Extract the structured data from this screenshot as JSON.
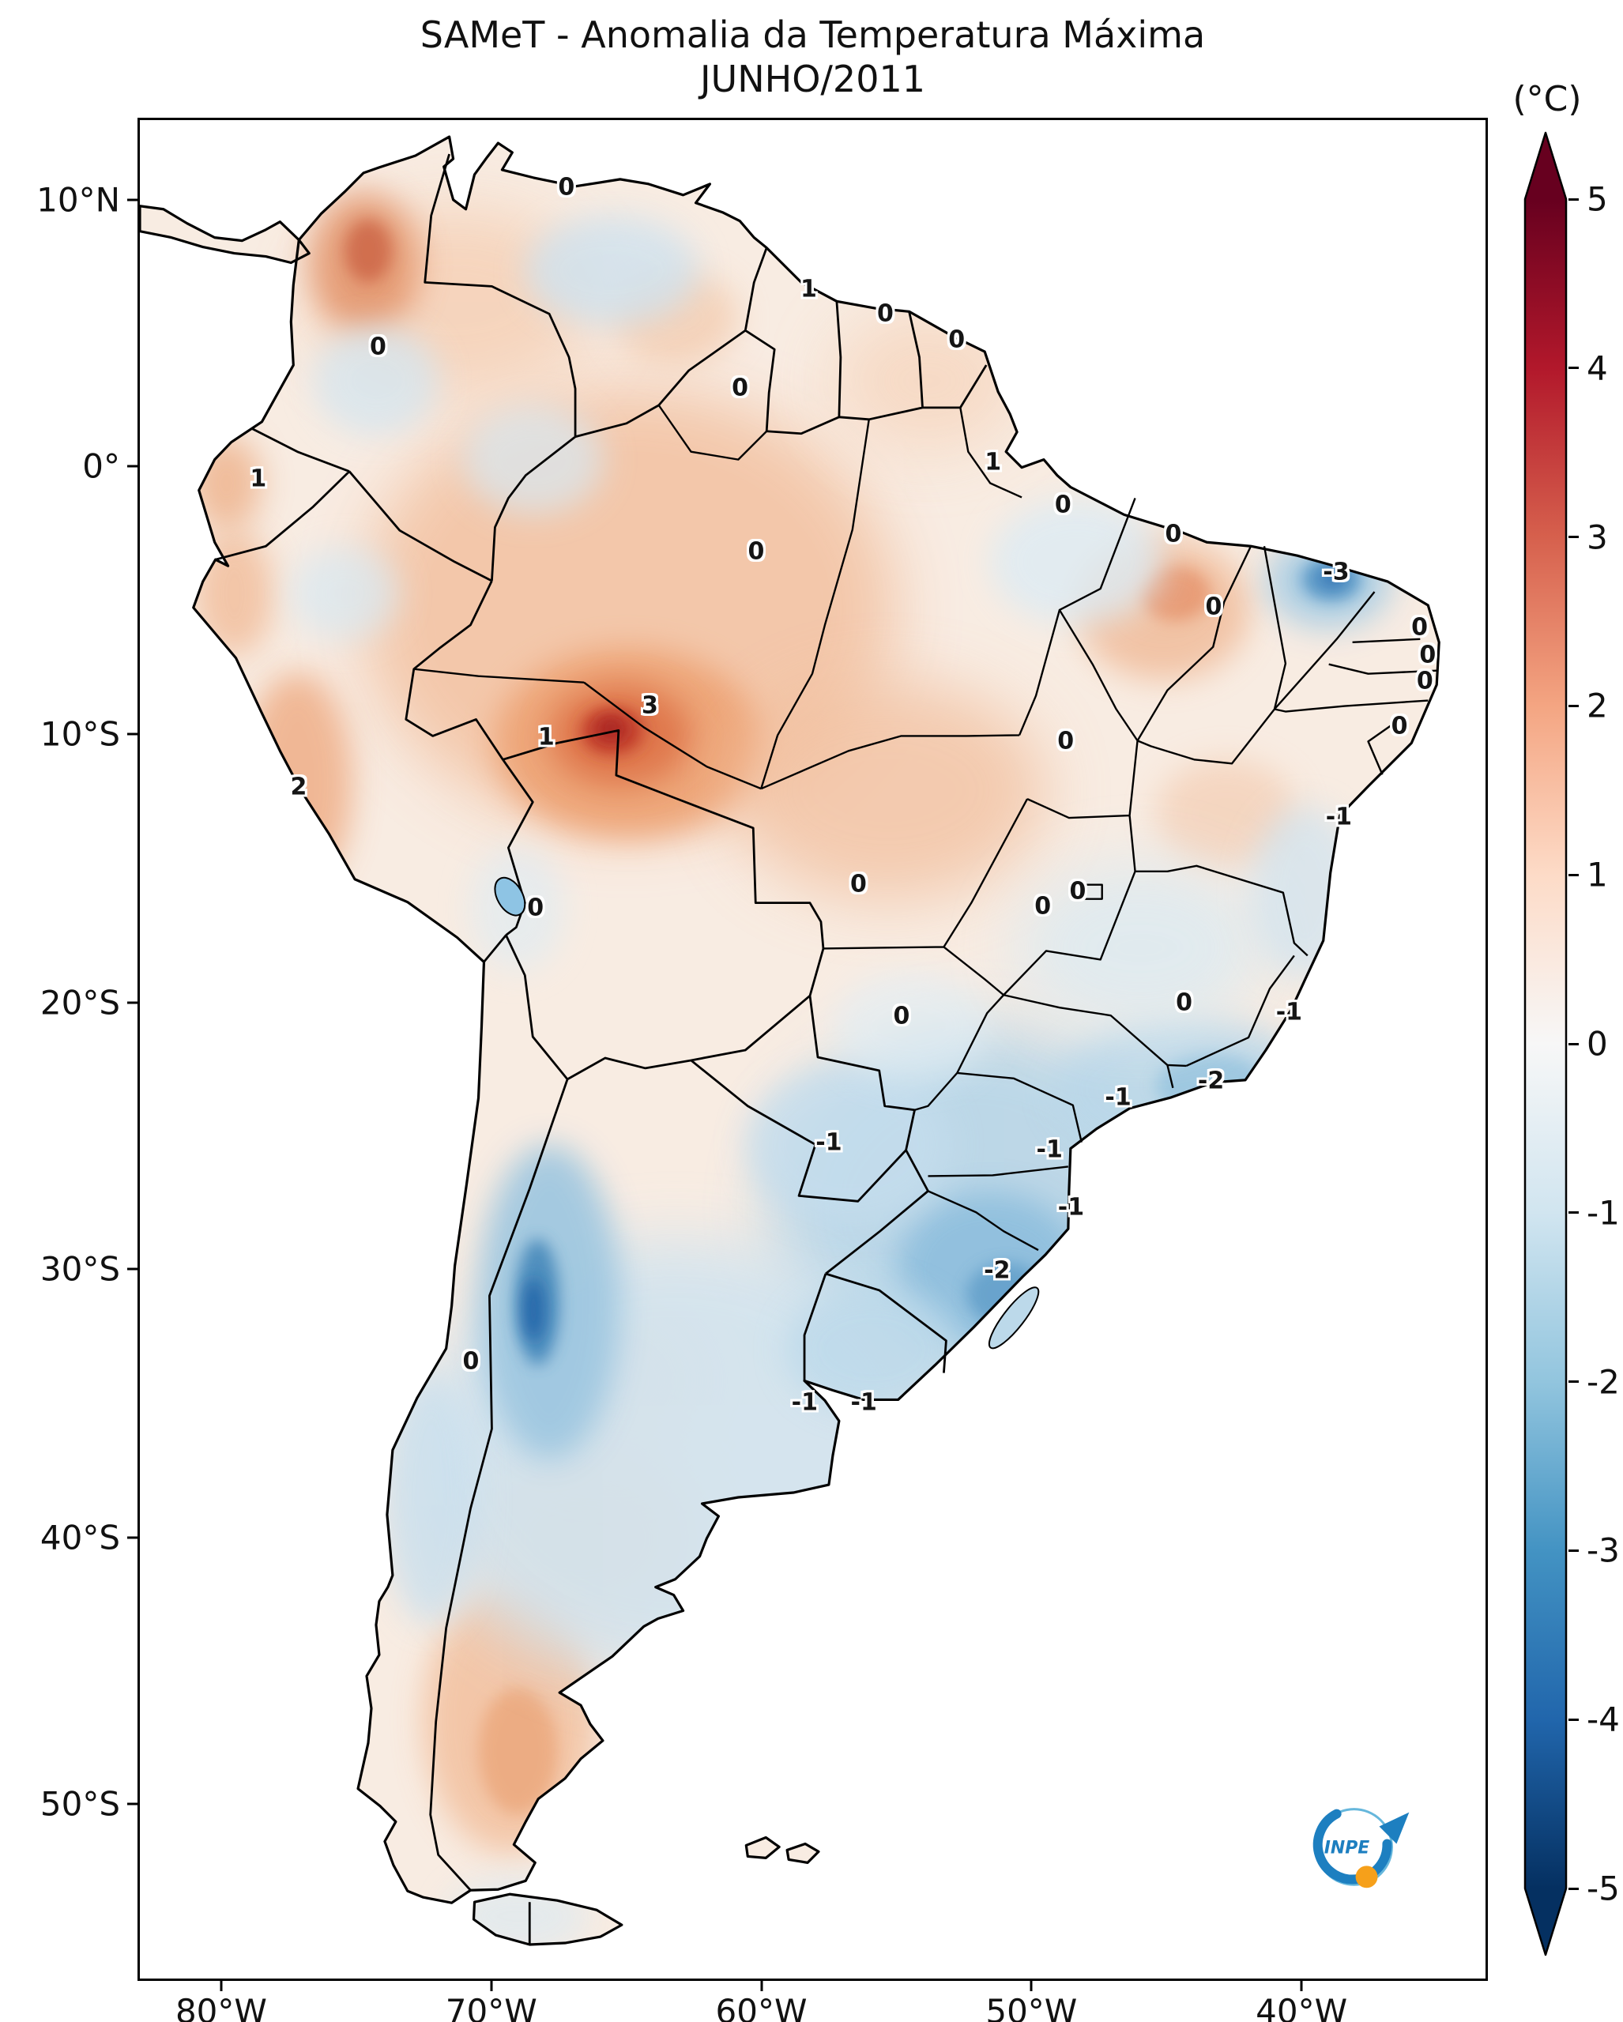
{
  "title": {
    "line1": "SAMeT - Anomalia da Temperatura Máxima",
    "line2": "JUNHO/2011"
  },
  "colorbar": {
    "unit_label": "(°C)",
    "ticks": [
      "5",
      "4",
      "3",
      "2",
      "1",
      "0",
      "-1",
      "-2",
      "-3",
      "-4",
      "-5"
    ],
    "gradient_stops": [
      "#67001f",
      "#b2182b",
      "#d6604d",
      "#f4a582",
      "#fddbc7",
      "#f7f7f7",
      "#d1e5f0",
      "#92c5de",
      "#4393c3",
      "#2166ac",
      "#053061"
    ],
    "top_arrow_color": "#67001f",
    "bottom_arrow_color": "#053061"
  },
  "axes": {
    "lat_ticks": [
      {
        "label": "10°N",
        "y_pct": 4.4
      },
      {
        "label": "0°",
        "y_pct": 18.7
      },
      {
        "label": "10°S",
        "y_pct": 33.1
      },
      {
        "label": "20°S",
        "y_pct": 47.5
      },
      {
        "label": "30°S",
        "y_pct": 61.8
      },
      {
        "label": "40°S",
        "y_pct": 76.2
      },
      {
        "label": "50°S",
        "y_pct": 90.5
      }
    ],
    "lon_ticks": [
      {
        "label": "80°W",
        "x_pct": 6.2
      },
      {
        "label": "70°W",
        "x_pct": 26.2
      },
      {
        "label": "60°W",
        "x_pct": 46.2
      },
      {
        "label": "50°W",
        "x_pct": 66.2
      },
      {
        "label": "40°W",
        "x_pct": 86.2
      }
    ]
  },
  "logo": {
    "text": "INPE",
    "blue": "#1d7fc0",
    "light_blue": "#66b7dc",
    "orange": "#f6a01a"
  },
  "chart_data": {
    "type": "heatmap",
    "title": "SAMeT - Anomalia da Temperatura Máxima",
    "subtitle": "JUNHO/2011",
    "unit": "°C",
    "colorbar_range": [
      -5,
      5
    ],
    "colorbar_ticks": [
      5,
      4,
      3,
      2,
      1,
      0,
      -1,
      -2,
      -3,
      -4,
      -5
    ],
    "lat_axis": [
      "10°N",
      "0°",
      "10°S",
      "20°S",
      "30°S",
      "40°S",
      "50°S"
    ],
    "lon_axis": [
      "80°W",
      "70°W",
      "60°W",
      "50°W",
      "40°W"
    ],
    "legend_position": "right",
    "region_anomalies": [
      {
        "v": "0",
        "x": 31.7,
        "y": 3.6
      },
      {
        "v": "1",
        "x": 49.7,
        "y": 9.1
      },
      {
        "v": "0",
        "x": 55.4,
        "y": 10.4
      },
      {
        "v": "0",
        "x": 60.7,
        "y": 11.8
      },
      {
        "v": "0",
        "x": 17.7,
        "y": 12.2
      },
      {
        "v": "0",
        "x": 44.6,
        "y": 14.4
      },
      {
        "v": "1",
        "x": 8.8,
        "y": 19.3
      },
      {
        "v": "1",
        "x": 63.4,
        "y": 18.4
      },
      {
        "v": "0",
        "x": 68.6,
        "y": 20.7
      },
      {
        "v": "0",
        "x": 45.8,
        "y": 23.2
      },
      {
        "v": "0",
        "x": 76.8,
        "y": 22.3
      },
      {
        "v": "-3",
        "x": 88.9,
        "y": 24.3
      },
      {
        "v": "0",
        "x": 79.8,
        "y": 26.2
      },
      {
        "v": "0",
        "x": 95.1,
        "y": 27.3
      },
      {
        "v": "0",
        "x": 95.7,
        "y": 28.8
      },
      {
        "v": "0",
        "x": 95.5,
        "y": 30.2
      },
      {
        "v": "0",
        "x": 93.6,
        "y": 32.6
      },
      {
        "v": "1",
        "x": 30.2,
        "y": 33.2
      },
      {
        "v": "3",
        "x": 37.9,
        "y": 31.5
      },
      {
        "v": "0",
        "x": 68.8,
        "y": 33.4
      },
      {
        "v": "-1",
        "x": 89.1,
        "y": 37.5
      },
      {
        "v": "2",
        "x": 11.8,
        "y": 35.9
      },
      {
        "v": "0",
        "x": 29.4,
        "y": 42.4
      },
      {
        "v": "0",
        "x": 53.4,
        "y": 41.1
      },
      {
        "v": "0",
        "x": 67.1,
        "y": 42.3
      },
      {
        "v": "0",
        "x": 69.7,
        "y": 41.5
      },
      {
        "v": "0",
        "x": 77.6,
        "y": 47.5
      },
      {
        "v": "-1",
        "x": 85.4,
        "y": 48.0
      },
      {
        "v": "0",
        "x": 56.6,
        "y": 48.2
      },
      {
        "v": "-2",
        "x": 79.6,
        "y": 51.7
      },
      {
        "v": "-1",
        "x": 72.7,
        "y": 52.6
      },
      {
        "v": "-1",
        "x": 51.2,
        "y": 55.0
      },
      {
        "v": "-1",
        "x": 67.6,
        "y": 55.4
      },
      {
        "v": "-1",
        "x": 69.2,
        "y": 58.5
      },
      {
        "v": "-2",
        "x": 63.7,
        "y": 61.9
      },
      {
        "v": "0",
        "x": 24.6,
        "y": 66.8
      },
      {
        "v": "-1",
        "x": 49.4,
        "y": 69.0
      },
      {
        "v": "-1",
        "x": 53.8,
        "y": 69.0
      }
    ]
  }
}
